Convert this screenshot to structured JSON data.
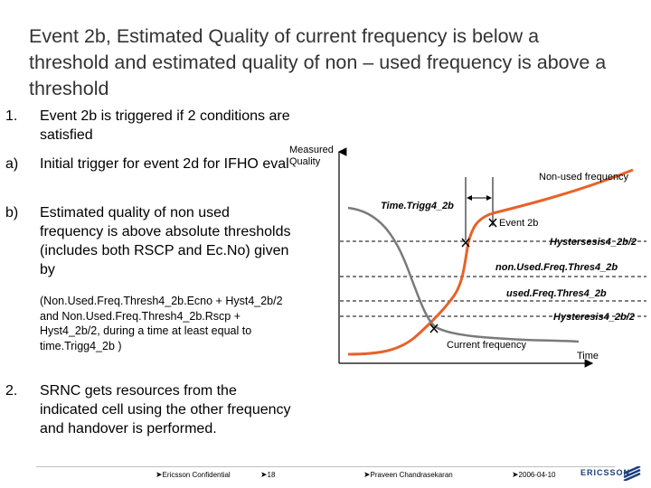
{
  "title": "Event 2b, Estimated Quality of current frequency is below a threshold and estimated quality of non – used frequency is above a threshold",
  "items": [
    {
      "num": "1.",
      "text": "Event 2b is triggered if 2 conditions are satisfied"
    },
    {
      "num": "a)",
      "text": "Initial trigger for event 2d for IFHO eval"
    },
    {
      "num": "b)",
      "text": "Estimated quality of non used frequency is above absolute thresholds (includes both RSCP and Ec.No) given by"
    },
    {
      "num": "2.",
      "text": " SRNC gets resources from the indicated cell using the other frequency and handover is performed."
    }
  ],
  "note": "(Non.Used.Freq.Thresh4_2b.Ecno + Hyst4_2b/2 and Non.Used.Freq.Thresh4_2b.Rscp + Hyst4_2b/2, during a time at least equal to time.Trigg4_2b )",
  "diagram": {
    "y_axis_label_1": "Measured",
    "y_axis_label_2": "Quality",
    "x_axis_label": "Time",
    "non_used_label": "Non-used frequency",
    "current_label": "Current frequency",
    "time_trigg_label": "Time.Trigg4_2b",
    "event_label": "Event 2b",
    "hyst_upper_label": "Hystersesis4_2b/2",
    "non_used_thresh_label": "non.Used.Freq.Thres4_2b",
    "used_thresh_label": "used.Freq.Thres4_2b",
    "hyst_lower_label": "Hysteresis4_2b/2",
    "curve_color": "#e8622a"
  },
  "footer": {
    "confidential": "Ericsson Confidential",
    "page": "18",
    "author": "Praveen Chandrasekaran",
    "date": "2006-04-10",
    "logo_text": "ERICSSON"
  }
}
